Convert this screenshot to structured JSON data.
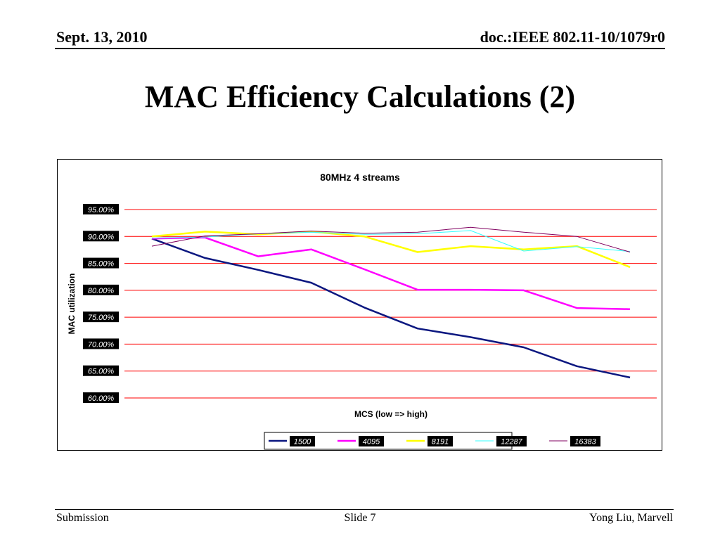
{
  "header": {
    "date": "Sept. 13, 2010",
    "doc": "doc.:IEEE 802.11-10/1079r0"
  },
  "slide": {
    "title": "MAC Efficiency Calculations (2)"
  },
  "footer": {
    "left": "Submission",
    "center": "Slide 7",
    "right": "Yong Liu, Marvell"
  },
  "chart_data": {
    "type": "line",
    "title": "80MHz 4 streams",
    "xlabel": "MCS (low => high)",
    "ylabel": "MAC utilization",
    "ylim": [
      0.6,
      0.95
    ],
    "yticks": [
      "95.00%",
      "90.00%",
      "85.00%",
      "80.00%",
      "75.00%",
      "70.00%",
      "65.00%",
      "60.00%"
    ],
    "ytick_values": [
      0.95,
      0.9,
      0.85,
      0.8,
      0.75,
      0.7,
      0.65,
      0.6
    ],
    "x": [
      1,
      2,
      3,
      4,
      5,
      6,
      7,
      8,
      9,
      10
    ],
    "legend_position": "bottom",
    "grid": "horizontal",
    "series": [
      {
        "name": "1500",
        "color": "#0b1780",
        "values": [
          0.896,
          0.86,
          0.838,
          0.814,
          0.768,
          0.729,
          0.713,
          0.694,
          0.659,
          0.638
        ]
      },
      {
        "name": "4095",
        "color": "#ff00ff",
        "values": [
          0.896,
          0.898,
          0.863,
          0.876,
          0.839,
          0.801,
          0.801,
          0.8,
          0.767,
          0.765
        ]
      },
      {
        "name": "8191",
        "color": "#ffff00",
        "values": [
          0.9,
          0.909,
          0.904,
          0.909,
          0.9,
          0.871,
          0.882,
          0.876,
          0.882,
          0.843
        ]
      },
      {
        "name": "12287",
        "color": "#33ffff",
        "values": [
          0.897,
          0.899,
          0.905,
          0.908,
          0.904,
          0.905,
          0.911,
          0.873,
          0.881,
          0.872
        ]
      },
      {
        "name": "16383",
        "color": "#800060",
        "values": [
          0.882,
          0.901,
          0.905,
          0.91,
          0.906,
          0.908,
          0.917,
          0.908,
          0.9,
          0.871
        ]
      }
    ]
  }
}
